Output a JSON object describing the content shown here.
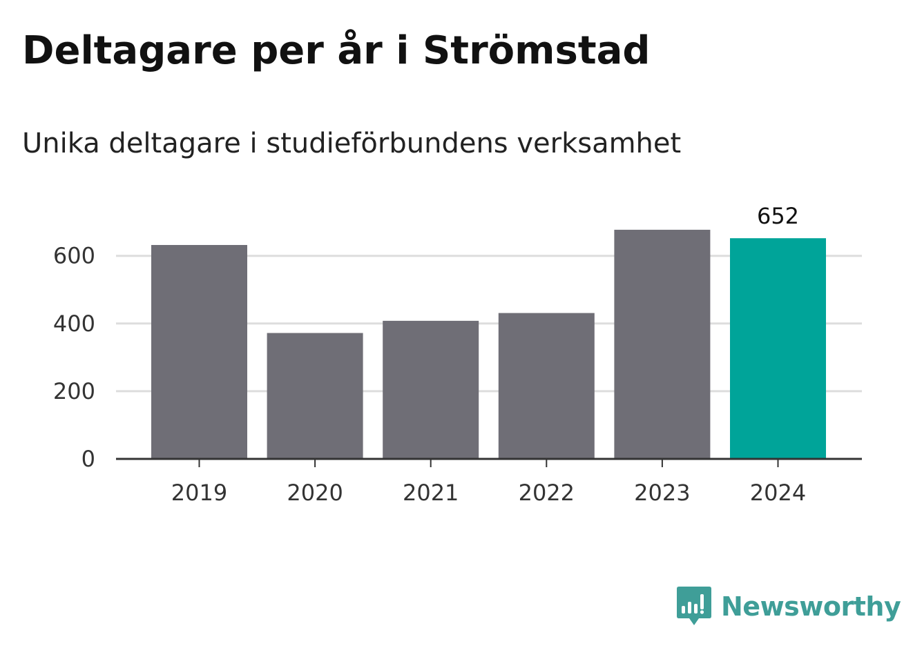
{
  "title": "Deltagare per år i Strömstad",
  "subtitle": "Unika deltagare i studieförbundens verksamhet",
  "brand": {
    "name": "Newsworthy",
    "icon": "newsworthy-logo-icon",
    "color": "#3f9e98"
  },
  "colors": {
    "bar_default": "#6f6e76",
    "bar_highlight": "#00a499",
    "grid": "#dddddd",
    "axis": "#333333"
  },
  "chart_data": {
    "type": "bar",
    "categories": [
      "2019",
      "2020",
      "2021",
      "2022",
      "2023",
      "2024"
    ],
    "values": [
      632,
      372,
      408,
      431,
      677,
      652
    ],
    "highlight_index": 5,
    "data_labels": [
      {
        "index": 5,
        "text": "652"
      }
    ],
    "title": "Deltagare per år i Strömstad",
    "subtitle": "Unika deltagare i studieförbundens verksamhet",
    "xlabel": "",
    "ylabel": "",
    "ylim": [
      0,
      700
    ],
    "yticks": [
      0,
      200,
      400,
      600
    ],
    "grid": true,
    "legend": "none"
  }
}
